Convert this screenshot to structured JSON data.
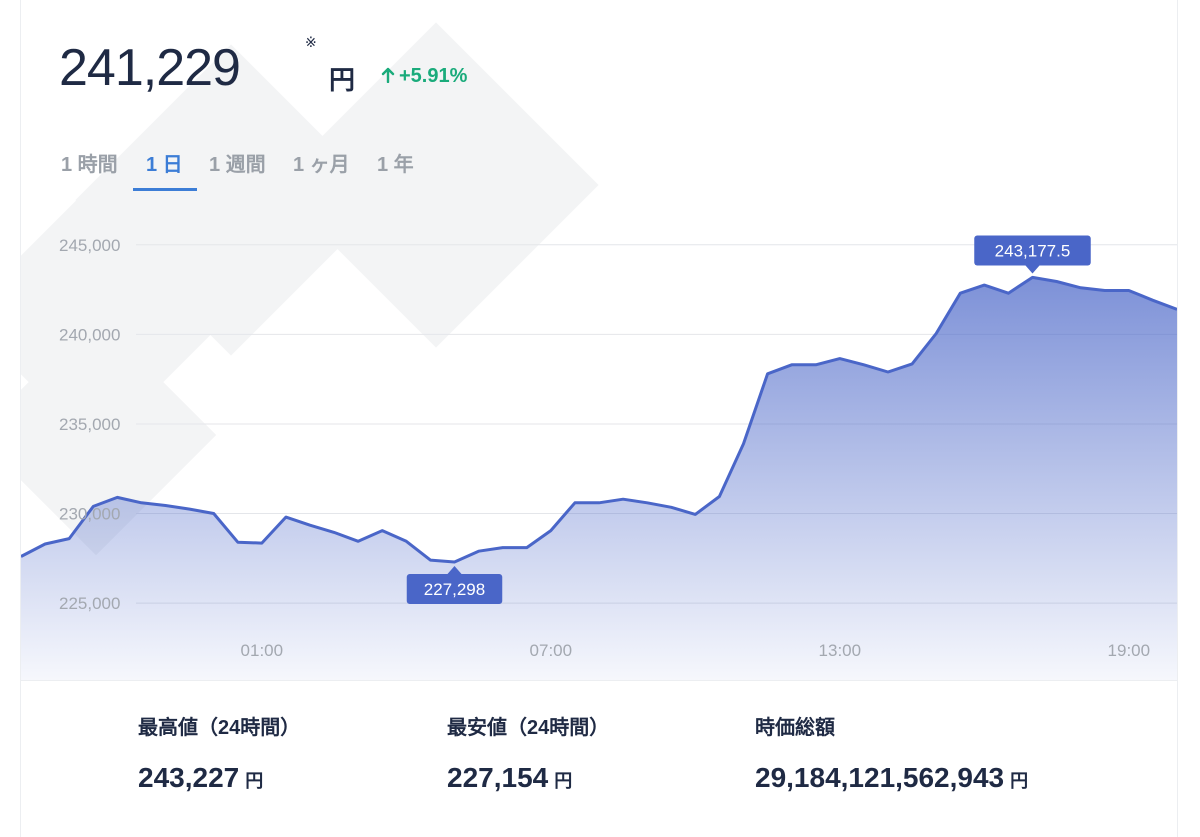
{
  "price": {
    "value": "241,229",
    "note_mark": "※",
    "unit": "円",
    "change": "+5.91%",
    "change_icon": "arrow-up-icon",
    "change_color": "#1aab7b"
  },
  "tabs": [
    {
      "label": "1 時間",
      "active": false
    },
    {
      "label": "1 日",
      "active": true
    },
    {
      "label": "1 週間",
      "active": false
    },
    {
      "label": "1 ヶ月",
      "active": false
    },
    {
      "label": "1 年",
      "active": false
    }
  ],
  "colors": {
    "accent": "#3c7dd6",
    "line": "#4a66c8",
    "callout": "#4a66c8",
    "text": "#1f2a44"
  },
  "chart_data": {
    "type": "area",
    "ylim": [
      223500,
      247500
    ],
    "yticks": [
      225000,
      230000,
      235000,
      240000,
      245000
    ],
    "ytick_labels": [
      "225,000",
      "230,000",
      "235,000",
      "240,000",
      "245,000"
    ],
    "xticks": [
      {
        "label": "01:00",
        "index": 10
      },
      {
        "label": "07:00",
        "index": 22
      },
      {
        "label": "13:00",
        "index": 34
      },
      {
        "label": "19:00",
        "index": 46
      }
    ],
    "values": [
      227600,
      228300,
      228600,
      230400,
      230900,
      230600,
      230450,
      230250,
      230000,
      228400,
      228350,
      229800,
      229350,
      228950,
      228450,
      229050,
      228450,
      227400,
      227298,
      227900,
      228100,
      228100,
      229050,
      230600,
      230600,
      230800,
      230600,
      230350,
      229950,
      230950,
      233900,
      237800,
      238300,
      238300,
      238650,
      238300,
      237900,
      238350,
      240050,
      242300,
      242750,
      242300,
      243177.5,
      242950,
      242600,
      242450,
      242450,
      241900,
      241400
    ],
    "annotations": [
      {
        "label": "243,177.5",
        "value": 243177.5,
        "index": 42,
        "position": "above"
      },
      {
        "label": "227,298",
        "value": 227298,
        "index": 18,
        "position": "below"
      }
    ],
    "grid": true
  },
  "stats": [
    {
      "label": "最高値（24時間）",
      "value": "243,227",
      "unit": "円"
    },
    {
      "label": "最安値（24時間）",
      "value": "227,154",
      "unit": "円"
    },
    {
      "label": "時価総額",
      "value": "29,184,121,562,943",
      "unit": "円"
    }
  ]
}
